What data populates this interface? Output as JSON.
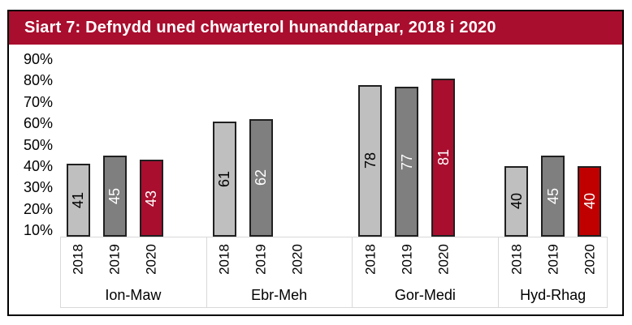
{
  "title": "Siart 7: Defnydd uned chwarterol hunanddarpar, 2018 i 2020",
  "colors": {
    "title_bg": "#A90E2E",
    "title_text": "#FFFFFF",
    "crimson": "#A90E2E",
    "bright_red": "#C00000",
    "light_gray": "#BFBFBF",
    "dark_gray": "#7F7F7F",
    "bar_border": "#202020",
    "axis_box_border": "#D9D9D9",
    "frame_border": "#000000"
  },
  "chart_data": {
    "type": "bar",
    "title": "Siart 7: Defnydd uned chwarterol hunanddarpar, 2018 i 2020",
    "categories": [
      "Ion-Maw",
      "Ebr-Meh",
      "Gor-Medi",
      "Hyd-Rhag"
    ],
    "series": [
      {
        "name": "2018",
        "values": [
          41,
          61,
          78,
          40
        ],
        "fills": [
          "#BFBFBF",
          "#BFBFBF",
          "#BFBFBF",
          "#BFBFBF"
        ],
        "label_color": "#000000"
      },
      {
        "name": "2019",
        "values": [
          45,
          62,
          77,
          45
        ],
        "fills": [
          "#7F7F7F",
          "#7F7F7F",
          "#7F7F7F",
          "#7F7F7F"
        ],
        "label_color": "#FFFFFF"
      },
      {
        "name": "2020",
        "values": [
          43,
          null,
          81,
          40
        ],
        "fills": [
          "#A90E2E",
          null,
          "#A90E2E",
          "#C00000"
        ],
        "label_color": "#FFFFFF"
      }
    ],
    "ytick_labels": [
      "10%",
      "20%",
      "30%",
      "40%",
      "50%",
      "60%",
      "70%",
      "80%",
      "90%"
    ],
    "ytick_values": [
      10,
      20,
      30,
      40,
      50,
      60,
      70,
      80,
      90
    ],
    "ylim": [
      10,
      90
    ],
    "value_labels": "rotated-90-inside-center",
    "grid": false,
    "legend": false
  }
}
